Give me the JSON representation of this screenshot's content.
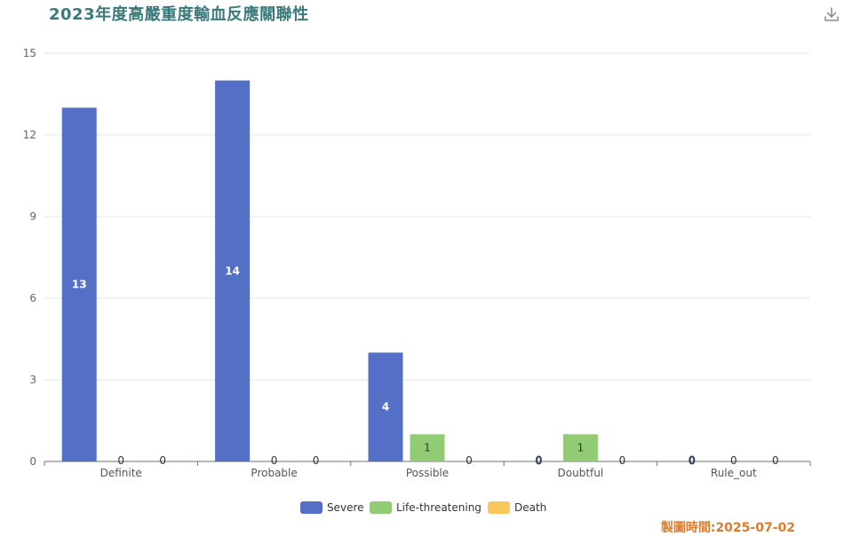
{
  "title": "2023年度高嚴重度輸血反應關聯性",
  "footer_date": "製圖時間:2025-07-02",
  "download_icon": "download-icon",
  "chart_data": {
    "type": "bar",
    "categories": [
      "Definite",
      "Probable",
      "Possible",
      "Doubtful",
      "Rule_out"
    ],
    "series": [
      {
        "name": "Severe",
        "color": "#5470c6",
        "values": [
          13,
          14,
          4,
          0,
          0
        ]
      },
      {
        "name": "Life-threatening",
        "color": "#91cc75",
        "values": [
          0,
          0,
          1,
          1,
          0
        ]
      },
      {
        "name": "Death",
        "color": "#fac858",
        "values": [
          0,
          0,
          0,
          0,
          0
        ]
      }
    ],
    "yticks": [
      0,
      3,
      6,
      9,
      12,
      15
    ],
    "ylim": [
      0,
      15
    ],
    "grid": true,
    "legend_position": "bottom-center"
  }
}
